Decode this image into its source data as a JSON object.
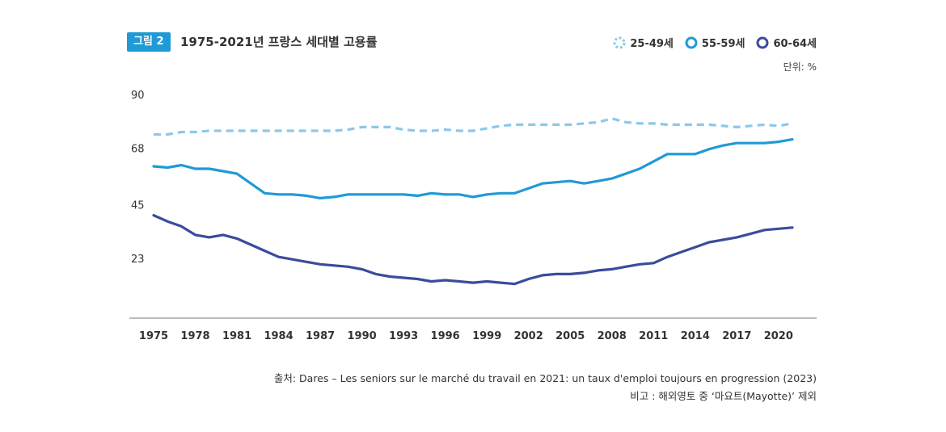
{
  "figure": {
    "badge": "그림 2",
    "title": "1975-2021년 프랑스 세대별 고용률",
    "unit": "단위: %",
    "source": "출처:  Dares – Les seniors sur le marché du travail en 2021: un taux d'emploi toujours en progression (2023)",
    "note": "비고 : 해외영토 중 ‘마요트(Mayotte)’ 제외"
  },
  "chart_data": {
    "type": "line",
    "title": "1975-2021년 프랑스 세대별 고용률",
    "xlabel": "",
    "ylabel": "",
    "ylim": [
      0,
      90
    ],
    "xlim": [
      1975,
      2021
    ],
    "yticks": [
      23,
      45,
      68,
      90
    ],
    "xticks": [
      1975,
      1978,
      1981,
      1984,
      1987,
      1990,
      1993,
      1996,
      1999,
      2002,
      2005,
      2008,
      2011,
      2014,
      2017,
      2020
    ],
    "grid": false,
    "legend_position": "top-right",
    "series": [
      {
        "name": "25-49세",
        "color": "#8cc8ec",
        "style": "dashed",
        "points": [
          [
            1975,
            74
          ],
          [
            1976,
            74
          ],
          [
            1977,
            75
          ],
          [
            1978,
            75
          ],
          [
            1979,
            75.5
          ],
          [
            1980,
            75.5
          ],
          [
            1981,
            75.5
          ],
          [
            1982,
            75.5
          ],
          [
            1983,
            75.5
          ],
          [
            1984,
            75.5
          ],
          [
            1985,
            75.5
          ],
          [
            1986,
            75.5
          ],
          [
            1987,
            75.5
          ],
          [
            1988,
            75.5
          ],
          [
            1989,
            76
          ],
          [
            1990,
            77
          ],
          [
            1991,
            77
          ],
          [
            1992,
            77
          ],
          [
            1993,
            76
          ],
          [
            1994,
            75.5
          ],
          [
            1995,
            75.5
          ],
          [
            1996,
            76
          ],
          [
            1997,
            75.5
          ],
          [
            1998,
            75.5
          ],
          [
            1999,
            76.5
          ],
          [
            2000,
            77.5
          ],
          [
            2001,
            78
          ],
          [
            2002,
            78
          ],
          [
            2003,
            78
          ],
          [
            2004,
            78
          ],
          [
            2005,
            78
          ],
          [
            2006,
            78.5
          ],
          [
            2007,
            79
          ],
          [
            2008,
            80.5
          ],
          [
            2009,
            79
          ],
          [
            2010,
            78.5
          ],
          [
            2011,
            78.5
          ],
          [
            2012,
            78
          ],
          [
            2013,
            78
          ],
          [
            2014,
            78
          ],
          [
            2015,
            78
          ],
          [
            2016,
            77.5
          ],
          [
            2017,
            77
          ],
          [
            2018,
            77.5
          ],
          [
            2019,
            78
          ],
          [
            2020,
            77.5
          ],
          [
            2021,
            78.5
          ]
        ]
      },
      {
        "name": "55-59세",
        "color": "#1f9ad6",
        "style": "solid",
        "points": [
          [
            1975,
            61
          ],
          [
            1976,
            60.5
          ],
          [
            1977,
            61.5
          ],
          [
            1978,
            60
          ],
          [
            1979,
            60
          ],
          [
            1980,
            59
          ],
          [
            1981,
            58
          ],
          [
            1982,
            54
          ],
          [
            1983,
            50
          ],
          [
            1984,
            49.5
          ],
          [
            1985,
            49.5
          ],
          [
            1986,
            49
          ],
          [
            1987,
            48
          ],
          [
            1988,
            48.5
          ],
          [
            1989,
            49.5
          ],
          [
            1990,
            49.5
          ],
          [
            1991,
            49.5
          ],
          [
            1992,
            49.5
          ],
          [
            1993,
            49.5
          ],
          [
            1994,
            49
          ],
          [
            1995,
            50
          ],
          [
            1996,
            49.5
          ],
          [
            1997,
            49.5
          ],
          [
            1998,
            48.5
          ],
          [
            1999,
            49.5
          ],
          [
            2000,
            50
          ],
          [
            2001,
            50
          ],
          [
            2002,
            52
          ],
          [
            2003,
            54
          ],
          [
            2004,
            54.5
          ],
          [
            2005,
            55
          ],
          [
            2006,
            54
          ],
          [
            2007,
            55
          ],
          [
            2008,
            56
          ],
          [
            2009,
            58
          ],
          [
            2010,
            60
          ],
          [
            2011,
            63
          ],
          [
            2012,
            66
          ],
          [
            2013,
            66
          ],
          [
            2014,
            66
          ],
          [
            2015,
            68
          ],
          [
            2016,
            69.5
          ],
          [
            2017,
            70.5
          ],
          [
            2018,
            70.5
          ],
          [
            2019,
            70.5
          ],
          [
            2020,
            71
          ],
          [
            2021,
            72
          ]
        ]
      },
      {
        "name": "60-64세",
        "color": "#3c4b9b",
        "style": "solid",
        "points": [
          [
            1975,
            41
          ],
          [
            1976,
            38.5
          ],
          [
            1977,
            36.5
          ],
          [
            1978,
            33
          ],
          [
            1979,
            32
          ],
          [
            1980,
            33
          ],
          [
            1981,
            31.5
          ],
          [
            1982,
            29
          ],
          [
            1983,
            26.5
          ],
          [
            1984,
            24
          ],
          [
            1985,
            23
          ],
          [
            1986,
            22
          ],
          [
            1987,
            21
          ],
          [
            1988,
            20.5
          ],
          [
            1989,
            20
          ],
          [
            1990,
            19
          ],
          [
            1991,
            17
          ],
          [
            1992,
            16
          ],
          [
            1993,
            15.5
          ],
          [
            1994,
            15
          ],
          [
            1995,
            14
          ],
          [
            1996,
            14.5
          ],
          [
            1997,
            14
          ],
          [
            1998,
            13.5
          ],
          [
            1999,
            14
          ],
          [
            2000,
            13.5
          ],
          [
            2001,
            13
          ],
          [
            2002,
            15
          ],
          [
            2003,
            16.5
          ],
          [
            2004,
            17
          ],
          [
            2005,
            17
          ],
          [
            2006,
            17.5
          ],
          [
            2007,
            18.5
          ],
          [
            2008,
            19
          ],
          [
            2009,
            20
          ],
          [
            2010,
            21
          ],
          [
            2011,
            21.5
          ],
          [
            2012,
            24
          ],
          [
            2013,
            26
          ],
          [
            2014,
            28
          ],
          [
            2015,
            30
          ],
          [
            2016,
            31
          ],
          [
            2017,
            32
          ],
          [
            2018,
            33.5
          ],
          [
            2019,
            35
          ],
          [
            2020,
            35.5
          ],
          [
            2021,
            36
          ]
        ]
      }
    ]
  }
}
